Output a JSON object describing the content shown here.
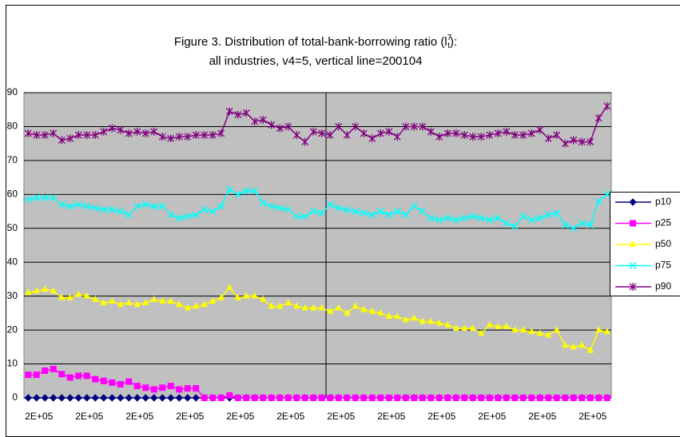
{
  "chart_data": {
    "type": "line",
    "title_prefix": "Figure 3. Distribution of total-bank-borrowing ratio (l",
    "title_sup": "7",
    "title_sub": "t",
    "title_suffix": "):",
    "subtitle": "all industries, v4=5, vertical line=200104",
    "categories": [
      null,
      "2E+05",
      null,
      null,
      null,
      null,
      null,
      "2E+05",
      null,
      null,
      null,
      null,
      null,
      "2E+05",
      null,
      null,
      null,
      null,
      null,
      "2E+05",
      null,
      null,
      null,
      null,
      null,
      "2E+05",
      null,
      null,
      null,
      null,
      null,
      "2E+05",
      null,
      null,
      null,
      null,
      null,
      "2E+05",
      null,
      null,
      null,
      null,
      null,
      "2E+05",
      null,
      null,
      null,
      null,
      null,
      "2E+05",
      null,
      null,
      null,
      null,
      null,
      "2E+05",
      null,
      null,
      null,
      null,
      null,
      "2E+05",
      null,
      null,
      null,
      null,
      null,
      "2E+05",
      null,
      null
    ],
    "ylim": [
      0,
      90
    ],
    "yticks": [
      0,
      10,
      20,
      30,
      40,
      50,
      60,
      70,
      80,
      90
    ],
    "grid": true,
    "legend": "right",
    "series": [
      {
        "name": "p10",
        "color": "#000080",
        "marker": "diamond",
        "values": [
          0,
          0,
          0,
          0,
          0,
          0,
          0,
          0,
          0,
          0,
          0,
          0,
          0,
          0,
          0,
          0,
          0,
          0,
          0,
          0,
          0,
          0,
          0,
          0,
          0,
          0,
          0,
          0,
          0,
          0,
          0,
          0,
          0,
          0,
          0,
          0,
          0,
          0,
          0,
          0,
          0,
          0,
          0,
          0,
          0,
          0,
          0,
          0,
          0,
          0,
          0,
          0,
          0,
          0,
          0,
          0,
          0,
          0,
          0,
          0,
          0,
          0,
          0,
          0,
          0,
          0,
          0,
          0,
          0,
          0
        ]
      },
      {
        "name": "p25",
        "color": "#ff00ff",
        "marker": "square",
        "values": [
          6.8,
          6.8,
          8,
          8.5,
          7,
          6,
          6.5,
          6.5,
          5.5,
          5,
          4.5,
          4,
          4.8,
          3.5,
          3,
          2.5,
          3,
          3.5,
          2.5,
          2.8,
          2.8,
          0,
          0,
          0,
          0.7,
          0,
          0,
          0,
          0,
          0,
          0,
          0,
          0,
          0,
          0,
          0,
          0,
          0,
          0,
          0,
          0,
          0,
          0,
          0,
          0,
          0,
          0,
          0,
          0,
          0,
          0,
          0,
          0,
          0,
          0,
          0,
          0,
          0,
          0,
          0,
          0,
          0,
          0,
          0,
          0,
          0,
          0,
          0,
          0,
          0
        ]
      },
      {
        "name": "p50",
        "color": "#ffff00",
        "marker": "triangle",
        "values": [
          31,
          31.5,
          32,
          31.5,
          29.5,
          29.5,
          30.5,
          30,
          29,
          28,
          28.5,
          27.5,
          28,
          27.5,
          28,
          29,
          28.5,
          28.5,
          27.5,
          26.5,
          27,
          27.5,
          28.5,
          29.5,
          32.5,
          29.5,
          30,
          30,
          29,
          27,
          27,
          28,
          27,
          26.5,
          26.5,
          26.5,
          25.5,
          26.5,
          25,
          27,
          26,
          25.5,
          25,
          24,
          24,
          23,
          23.5,
          22.5,
          22.5,
          22,
          21.5,
          20.5,
          20.5,
          20.5,
          19,
          21.5,
          21,
          21,
          20,
          20,
          19.5,
          19,
          18.5,
          20,
          15.5,
          15,
          15.5,
          14,
          20,
          19.5
        ]
      },
      {
        "name": "p75",
        "color": "#00ffff",
        "marker": "x",
        "values": [
          58.5,
          59,
          59,
          59,
          57,
          56.5,
          57,
          56.5,
          56,
          55.5,
          55.5,
          55,
          54,
          56.5,
          57,
          56.5,
          56.5,
          54,
          53,
          53.5,
          54,
          55.5,
          55,
          56.5,
          61.5,
          60,
          61,
          61,
          57.5,
          56.5,
          56,
          55.5,
          53.5,
          53.5,
          55,
          54.5,
          57,
          56,
          55.5,
          55,
          54.5,
          54,
          55,
          54,
          55,
          54,
          56.5,
          55,
          53,
          52.5,
          53,
          52.5,
          53,
          53.5,
          53,
          52.5,
          53,
          51.5,
          50.5,
          53.5,
          52.5,
          53,
          54,
          54.5,
          51,
          50,
          51.5,
          51,
          58,
          60
        ]
      },
      {
        "name": "p90",
        "color": "#800080",
        "marker": "star",
        "values": [
          78,
          77.5,
          77.5,
          78,
          76,
          76.5,
          77.5,
          77.5,
          77.5,
          78.5,
          79.5,
          79,
          78,
          78.5,
          78,
          78.5,
          77,
          76.5,
          77,
          77,
          77.5,
          77.5,
          77.5,
          78,
          84.5,
          83.5,
          84,
          81.5,
          82,
          80.5,
          79.5,
          80,
          77.5,
          75.5,
          78.5,
          78,
          77.5,
          80,
          77.5,
          80,
          78,
          76.5,
          78,
          78.5,
          77,
          80,
          80,
          80,
          78.5,
          77,
          78,
          78,
          77.5,
          77,
          77,
          77.5,
          78,
          78.5,
          77.5,
          77.5,
          78,
          79,
          76.5,
          77.5,
          75,
          76,
          75.5,
          75.5,
          82.5,
          86
        ]
      }
    ]
  }
}
